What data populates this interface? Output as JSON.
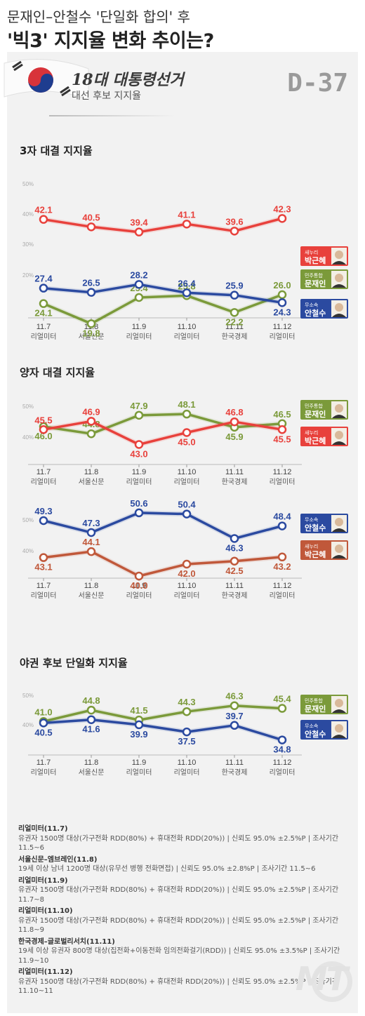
{
  "headline": {
    "line1": "문재인–안철수 '단일화 합의' 후",
    "line2": "'빅3' 지지율 변화 추이는?"
  },
  "banner": {
    "brand": "18대 대통령선거",
    "subtitle": "대선 후보 지지율",
    "dday": "D-37"
  },
  "colors": {
    "red": "#e8413c",
    "blue": "#2b4aa0",
    "green": "#7b9a3a",
    "brown": "#c0583a"
  },
  "chart_data": [
    {
      "type": "line",
      "title": "3자 대결 지지율",
      "x": [
        "11.7",
        "11.8",
        "11.9",
        "11.10",
        "11.11",
        "11.12"
      ],
      "sources": [
        "리얼미터",
        "서울신문",
        "리얼미터",
        "리얼미터",
        "한국경제",
        "리얼미터"
      ],
      "ylim": [
        20,
        50
      ],
      "yticks": [
        "50%",
        "40%",
        "30%",
        "20%"
      ],
      "series": [
        {
          "name": "박근혜",
          "party": "새누리",
          "color": "#e8413c",
          "values": [
            42.1,
            40.5,
            39.4,
            41.1,
            39.6,
            42.3
          ]
        },
        {
          "name": "문재인",
          "party": "민주통합",
          "color": "#7b9a3a",
          "values": [
            24.1,
            19.8,
            25.4,
            25.8,
            22.2,
            26.0
          ]
        },
        {
          "name": "안철수",
          "party": "무소속",
          "color": "#2b4aa0",
          "values": [
            27.4,
            26.5,
            28.2,
            26.4,
            25.9,
            24.3
          ]
        }
      ]
    },
    {
      "type": "line",
      "title": "양자 대결 지지율",
      "x": [
        "11.7",
        "11.8",
        "11.9",
        "11.10",
        "11.11",
        "11.12"
      ],
      "sources": [
        "리얼미터",
        "서울신문",
        "리얼미터",
        "리얼미터",
        "한국경제",
        "리얼미터"
      ],
      "ylim": [
        40,
        50
      ],
      "yticks": [
        "50%",
        "40%"
      ],
      "series": [
        {
          "name": "문재인",
          "party": "민주통합",
          "color": "#7b9a3a",
          "values": [
            46.0,
            44.8,
            47.9,
            48.1,
            45.9,
            46.5
          ]
        },
        {
          "name": "박근혜",
          "party": "새누리",
          "color": "#e8413c",
          "values": [
            45.5,
            46.9,
            43.0,
            45.0,
            46.8,
            45.5
          ]
        }
      ]
    },
    {
      "type": "line",
      "title": "",
      "x": [
        "11.7",
        "11.8",
        "11.9",
        "11.10",
        "11.11",
        "11.12"
      ],
      "sources": [
        "리얼미터",
        "서울신문",
        "리얼미터",
        "리얼미터",
        "한국경제",
        "리얼미터"
      ],
      "ylim": [
        40,
        50
      ],
      "yticks": [
        "50%",
        "40%"
      ],
      "series": [
        {
          "name": "안철수",
          "party": "무소속",
          "color": "#2b4aa0",
          "values": [
            49.3,
            47.3,
            50.6,
            50.4,
            46.3,
            48.4
          ]
        },
        {
          "name": "박근혜",
          "party": "새누리",
          "color": "#c0583a",
          "values": [
            43.1,
            44.1,
            40.0,
            42.0,
            42.5,
            43.2
          ]
        }
      ]
    },
    {
      "type": "line",
      "title": "야권 후보 단일화 지지율",
      "x": [
        "11.7",
        "11.8",
        "11.9",
        "11.10",
        "11.11",
        "11.12"
      ],
      "sources": [
        "리얼미터",
        "서울신문",
        "리얼미터",
        "리얼미터",
        "한국경제",
        "리얼미터"
      ],
      "ylim": [
        30,
        50
      ],
      "yticks": [
        "50%",
        "40%"
      ],
      "series": [
        {
          "name": "문재인",
          "party": "민주통합",
          "color": "#7b9a3a",
          "values": [
            41.0,
            44.8,
            41.5,
            44.3,
            46.3,
            45.4
          ]
        },
        {
          "name": "안철수",
          "party": "무소속",
          "color": "#2b4aa0",
          "values": [
            40.5,
            41.6,
            39.9,
            37.5,
            39.7,
            34.8
          ]
        }
      ]
    }
  ],
  "footnotes": [
    {
      "title": "리얼미터(11.7)",
      "text": "유권자 1500명 대상(가구전화 RDD(80%) + 휴대전화 RDD(20%)) | 신뢰도 95.0% ±2.5%P | 조사기간 11.5~6"
    },
    {
      "title": "서울신문–엠브레인(11.8)",
      "text": "19세 이상 남녀 1200명 대상(유무선 병행 전화면접) | 신뢰도 95.0% ±2.8%P | 조사기간 11.5~6"
    },
    {
      "title": "리얼미터(11.9)",
      "text": "유권자 1500명 대상(가구전화 RDD(80%) + 휴대전화 RDD(20%)) | 신뢰도 95.0% ±2.5%P | 조사기간 11.7~8"
    },
    {
      "title": "리얼미터(11.10)",
      "text": "유권자 1500명 대상(가구전화 RDD(80%) + 휴대전화 RDD(20%)) | 신뢰도 95.0% ±2.5%P | 조사기간 11.8~9"
    },
    {
      "title": "한국경제–글로벌리서치(11.11)",
      "text": "19세 이상 유권자 800명 대상(집전화+이동전화 임의전화걸기(RDD)) | 신뢰도 95.0% ±3.5%P | 조사기간 11.9~10"
    },
    {
      "title": "리얼미터(11.12)",
      "text": "유권자 1500명 대상(가구전화 RDD(80%) + 휴대전화 RDD(20%)) | 신뢰도 95.0% ±2.5%P | 조사기간 11.10~11"
    }
  ],
  "logo": "MT"
}
